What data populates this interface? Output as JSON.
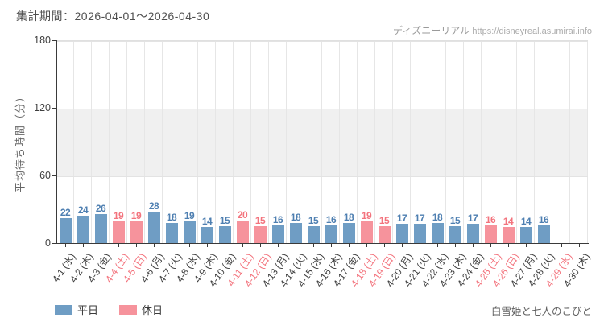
{
  "header": {
    "title": "集計期間：2026-04-01～2026-04-30",
    "watermark_brand": "ディズニーリアル",
    "watermark_url": "https://disneyreal.asumirai.info"
  },
  "chart_data": {
    "type": "bar",
    "title": "",
    "xlabel": "",
    "ylabel": "平均待ち時間（分）",
    "ylim": [
      0,
      180
    ],
    "yticks": [
      0,
      60,
      120,
      180
    ],
    "grid": true,
    "legend_position": "bottom-left",
    "categories": [
      "4-1 (水)",
      "4-2 (木)",
      "4-3 (金)",
      "4-4 (土)",
      "4-5 (日)",
      "4-6 (月)",
      "4-7 (火)",
      "4-8 (水)",
      "4-9 (木)",
      "4-10 (金)",
      "4-11 (土)",
      "4-12 (日)",
      "4-13 (月)",
      "4-14 (火)",
      "4-15 (水)",
      "4-16 (木)",
      "4-17 (金)",
      "4-18 (土)",
      "4-19 (日)",
      "4-20 (月)",
      "4-21 (火)",
      "4-22 (水)",
      "4-23 (木)",
      "4-24 (金)",
      "4-25 (土)",
      "4-26 (日)",
      "4-27 (月)",
      "4-28 (火)",
      "4-29 (水)",
      "4-30 (木)"
    ],
    "values": [
      22,
      24,
      26,
      19,
      19,
      28,
      18,
      19,
      14,
      15,
      20,
      15,
      16,
      18,
      15,
      16,
      18,
      19,
      15,
      17,
      17,
      18,
      15,
      17,
      16,
      14,
      14,
      16,
      null,
      null
    ],
    "day_types": [
      "weekday",
      "weekday",
      "weekday",
      "holiday",
      "holiday",
      "weekday",
      "weekday",
      "weekday",
      "weekday",
      "weekday",
      "holiday",
      "holiday",
      "weekday",
      "weekday",
      "weekday",
      "weekday",
      "weekday",
      "holiday",
      "holiday",
      "weekday",
      "weekday",
      "weekday",
      "weekday",
      "weekday",
      "holiday",
      "holiday",
      "weekday",
      "weekday",
      "holiday",
      "weekday"
    ],
    "legend": [
      {
        "label": "平日",
        "type": "weekday"
      },
      {
        "label": "休日",
        "type": "holiday"
      }
    ],
    "colors": {
      "weekday_bar": "rgba(70,130,180,0.78)",
      "holiday_bar": "rgba(240,80,95,0.62)",
      "weekday_value_text": "#4e7fb1",
      "holiday_value_text": "#f3737d",
      "weekday_axis_text": "#3f3f3f",
      "holiday_axis_text": "#f3737d",
      "band": "#f0f0f0",
      "grid": "#e6e6e6",
      "axis": "#3a3a3a"
    }
  },
  "footer": {
    "attraction_name": "白雪姫と七人のこびと"
  }
}
